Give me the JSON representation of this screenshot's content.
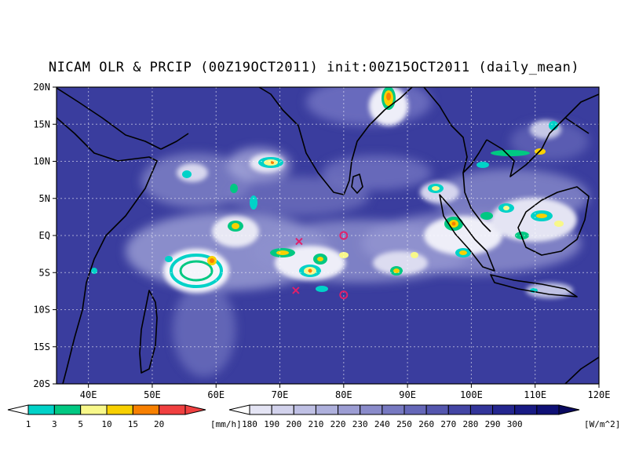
{
  "title": "NICAM OLR & PRCIP (00Z19OCT2011) init:00Z15OCT2011 (daily_mean)",
  "map": {
    "lon_range": [
      35,
      120
    ],
    "lat_range": [
      -20,
      20
    ],
    "lat_ticks": [
      {
        "value": 20,
        "label": "20N"
      },
      {
        "value": 15,
        "label": "15N"
      },
      {
        "value": 10,
        "label": "10N"
      },
      {
        "value": 5,
        "label": "5N"
      },
      {
        "value": 0,
        "label": "EQ"
      },
      {
        "value": -5,
        "label": "5S"
      },
      {
        "value": -10,
        "label": "10S"
      },
      {
        "value": -15,
        "label": "15S"
      },
      {
        "value": -20,
        "label": "20S"
      }
    ],
    "lon_ticks": [
      {
        "value": 40,
        "label": "40E"
      },
      {
        "value": 50,
        "label": "50E"
      },
      {
        "value": 60,
        "label": "60E"
      },
      {
        "value": 70,
        "label": "70E"
      },
      {
        "value": 80,
        "label": "80E"
      },
      {
        "value": 90,
        "label": "90E"
      },
      {
        "value": 100,
        "label": "100E"
      },
      {
        "value": 110,
        "label": "110E"
      },
      {
        "value": 120,
        "label": "120E"
      }
    ],
    "grid": "dotted",
    "markers": [
      {
        "type": "circle",
        "lon": 80,
        "lat": 0,
        "color": "#e0206a"
      },
      {
        "type": "circle",
        "lon": 80,
        "lat": -8,
        "color": "#e0206a"
      },
      {
        "type": "cross",
        "lon": 73,
        "lat": -0.8,
        "color": "#e0206a"
      },
      {
        "type": "cross",
        "lon": 72.5,
        "lat": -7.4,
        "color": "#e0206a"
      }
    ]
  },
  "precip_colorbar": {
    "unit": "[mm/h]",
    "labels": [
      "1",
      "3",
      "5",
      "10",
      "15",
      "20"
    ],
    "colors": [
      "#00d2c8",
      "#00c882",
      "#f8f88a",
      "#f8d000",
      "#f88000",
      "#f04040"
    ]
  },
  "olr_colorbar": {
    "unit": "[W/m^2]",
    "labels": [
      "180",
      "190",
      "200",
      "210",
      "220",
      "230",
      "240",
      "250",
      "260",
      "270",
      "280",
      "290",
      "300"
    ],
    "colors": [
      "#e4e4f4",
      "#d2d2ec",
      "#bfc0e4",
      "#aeb0dc",
      "#9c9dd3",
      "#8a8bca",
      "#7779c1",
      "#6567b8",
      "#5456ae",
      "#4345a4",
      "#33359a",
      "#24268f",
      "#181a84",
      "#0f1076"
    ]
  }
}
